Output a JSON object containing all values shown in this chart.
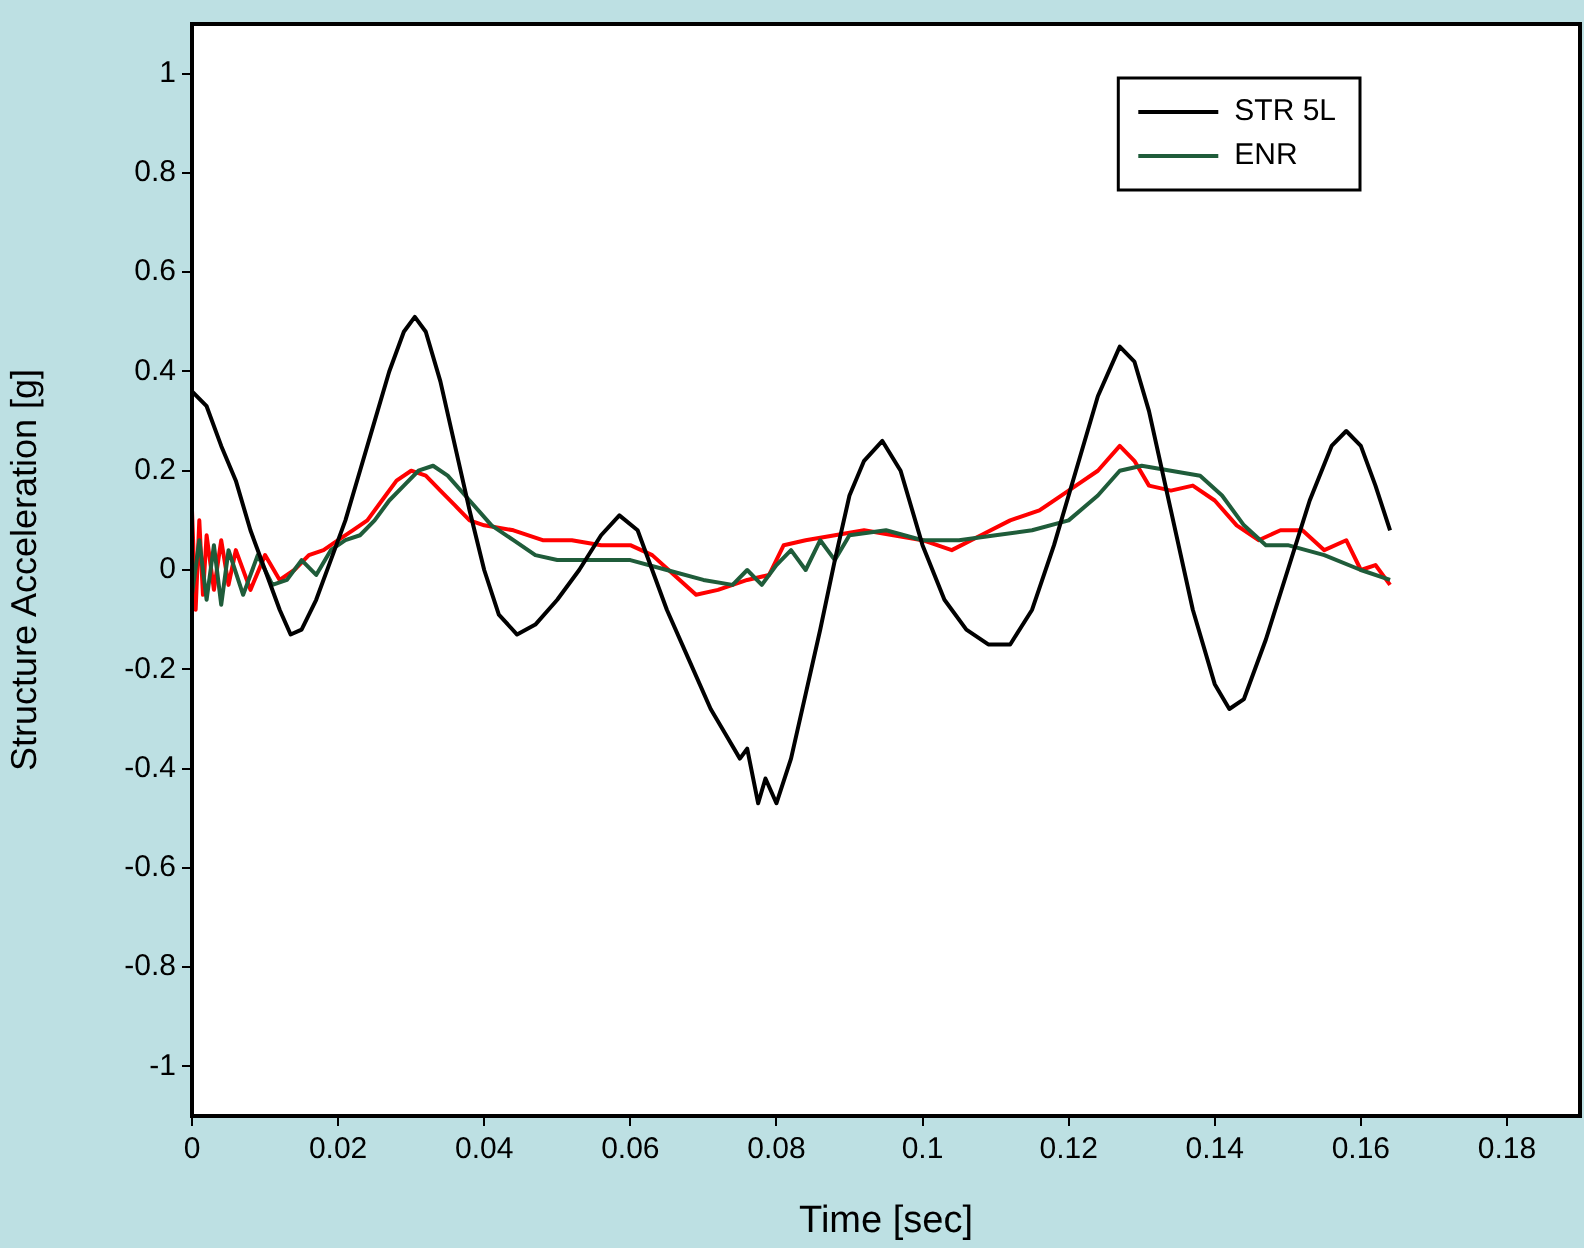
{
  "chart_data": {
    "type": "line",
    "xlabel": "Time [sec]",
    "ylabel": "Structure Acceleration [g]",
    "xlim": [
      0,
      0.19
    ],
    "ylim": [
      -1.1,
      1.1
    ],
    "xticks": [
      0,
      0.02,
      0.04,
      0.06,
      0.08,
      0.1,
      0.12,
      0.14,
      0.16,
      0.18
    ],
    "yticks": [
      -1,
      -0.8,
      -0.6,
      -0.4,
      -0.2,
      0,
      0.2,
      0.4,
      0.6,
      0.8,
      1
    ],
    "grid": false,
    "legend": "top right",
    "marker": "none",
    "line_style": "solid",
    "series": [
      {
        "name": "STR 5L",
        "color": "#000000",
        "x": [
          0,
          0.002,
          0.004,
          0.006,
          0.008,
          0.01,
          0.012,
          0.0135,
          0.015,
          0.017,
          0.019,
          0.021,
          0.023,
          0.025,
          0.027,
          0.029,
          0.0305,
          0.032,
          0.034,
          0.036,
          0.038,
          0.04,
          0.042,
          0.0445,
          0.047,
          0.05,
          0.053,
          0.056,
          0.0585,
          0.061,
          0.063,
          0.065,
          0.068,
          0.071,
          0.073,
          0.075,
          0.076,
          0.0775,
          0.0785,
          0.08,
          0.082,
          0.084,
          0.086,
          0.088,
          0.09,
          0.092,
          0.0945,
          0.097,
          0.1,
          0.103,
          0.106,
          0.109,
          0.112,
          0.115,
          0.118,
          0.121,
          0.124,
          0.127,
          0.129,
          0.131,
          0.134,
          0.137,
          0.14,
          0.142,
          0.144,
          0.147,
          0.15,
          0.153,
          0.156,
          0.158,
          0.16,
          0.162,
          0.164
        ],
        "values": [
          0.36,
          0.33,
          0.25,
          0.18,
          0.08,
          0.0,
          -0.08,
          -0.13,
          -0.12,
          -0.06,
          0.02,
          0.1,
          0.2,
          0.3,
          0.4,
          0.48,
          0.51,
          0.48,
          0.38,
          0.25,
          0.12,
          0.0,
          -0.09,
          -0.13,
          -0.11,
          -0.06,
          0.0,
          0.07,
          0.11,
          0.08,
          0.0,
          -0.08,
          -0.18,
          -0.28,
          -0.33,
          -0.38,
          -0.36,
          -0.47,
          -0.42,
          -0.47,
          -0.38,
          -0.25,
          -0.12,
          0.02,
          0.15,
          0.22,
          0.26,
          0.2,
          0.05,
          -0.06,
          -0.12,
          -0.15,
          -0.15,
          -0.08,
          0.05,
          0.2,
          0.35,
          0.45,
          0.42,
          0.32,
          0.12,
          -0.08,
          -0.23,
          -0.28,
          -0.26,
          -0.14,
          0.0,
          0.14,
          0.25,
          0.28,
          0.25,
          0.17,
          0.08
        ]
      },
      {
        "name": "ENR",
        "color": "#1f5c3a",
        "x": [
          0,
          0.001,
          0.002,
          0.003,
          0.004,
          0.005,
          0.007,
          0.009,
          0.011,
          0.013,
          0.015,
          0.017,
          0.019,
          0.021,
          0.023,
          0.025,
          0.027,
          0.029,
          0.031,
          0.033,
          0.035,
          0.038,
          0.041,
          0.044,
          0.047,
          0.05,
          0.055,
          0.06,
          0.065,
          0.07,
          0.074,
          0.076,
          0.078,
          0.08,
          0.082,
          0.084,
          0.086,
          0.088,
          0.09,
          0.095,
          0.1,
          0.105,
          0.11,
          0.115,
          0.12,
          0.124,
          0.127,
          0.13,
          0.134,
          0.138,
          0.141,
          0.144,
          0.147,
          0.15,
          0.155,
          0.16,
          0.164
        ],
        "values": [
          -0.05,
          0.06,
          -0.06,
          0.05,
          -0.07,
          0.04,
          -0.05,
          0.03,
          -0.03,
          -0.02,
          0.02,
          -0.01,
          0.04,
          0.06,
          0.07,
          0.1,
          0.14,
          0.17,
          0.2,
          0.21,
          0.19,
          0.14,
          0.09,
          0.06,
          0.03,
          0.02,
          0.02,
          0.02,
          0.0,
          -0.02,
          -0.03,
          0.0,
          -0.03,
          0.01,
          0.04,
          0.0,
          0.06,
          0.02,
          0.07,
          0.08,
          0.06,
          0.06,
          0.07,
          0.08,
          0.1,
          0.15,
          0.2,
          0.21,
          0.2,
          0.19,
          0.15,
          0.09,
          0.05,
          0.05,
          0.03,
          0.0,
          -0.02
        ]
      },
      {
        "color": "#ff0000",
        "x": [
          0,
          0.0005,
          0.001,
          0.0015,
          0.002,
          0.003,
          0.004,
          0.005,
          0.006,
          0.008,
          0.01,
          0.012,
          0.014,
          0.016,
          0.018,
          0.02,
          0.022,
          0.024,
          0.026,
          0.028,
          0.03,
          0.032,
          0.034,
          0.036,
          0.038,
          0.04,
          0.044,
          0.048,
          0.052,
          0.056,
          0.06,
          0.063,
          0.066,
          0.069,
          0.072,
          0.076,
          0.079,
          0.081,
          0.084,
          0.088,
          0.092,
          0.096,
          0.1,
          0.104,
          0.108,
          0.112,
          0.116,
          0.12,
          0.124,
          0.127,
          0.129,
          0.131,
          0.134,
          0.137,
          0.14,
          0.143,
          0.146,
          0.149,
          0.152,
          0.155,
          0.158,
          0.16,
          0.162,
          0.164
        ],
        "values": [
          0.12,
          -0.08,
          0.1,
          -0.05,
          0.07,
          -0.04,
          0.06,
          -0.03,
          0.04,
          -0.04,
          0.03,
          -0.02,
          0.0,
          0.03,
          0.04,
          0.06,
          0.08,
          0.1,
          0.14,
          0.18,
          0.2,
          0.19,
          0.16,
          0.13,
          0.1,
          0.09,
          0.08,
          0.06,
          0.06,
          0.05,
          0.05,
          0.03,
          -0.01,
          -0.05,
          -0.04,
          -0.02,
          -0.01,
          0.05,
          0.06,
          0.07,
          0.08,
          0.07,
          0.06,
          0.04,
          0.07,
          0.1,
          0.12,
          0.16,
          0.2,
          0.25,
          0.22,
          0.17,
          0.16,
          0.17,
          0.14,
          0.09,
          0.06,
          0.08,
          0.08,
          0.04,
          0.06,
          0.0,
          0.01,
          -0.03
        ]
      }
    ]
  }
}
